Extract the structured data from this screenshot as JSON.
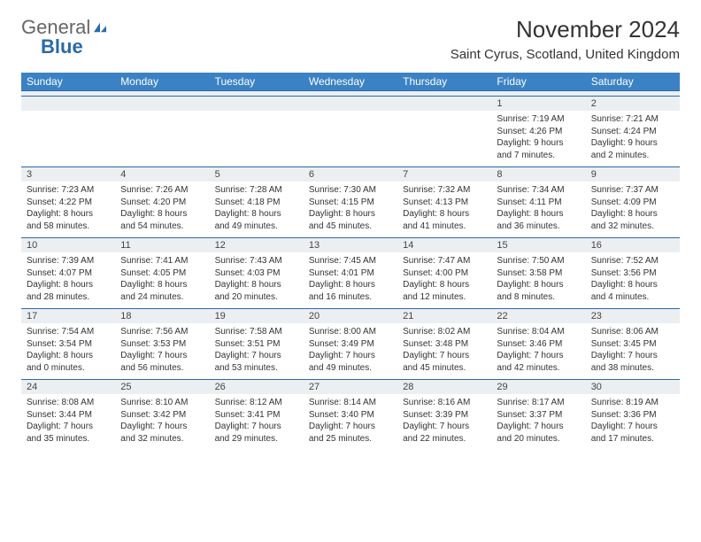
{
  "branding": {
    "logo_part1": "General",
    "logo_part2": "Blue",
    "logo_color_primary": "#666666",
    "logo_color_accent": "#2a6aa8"
  },
  "header": {
    "month_title": "November 2024",
    "location": "Saint Cyrus, Scotland, United Kingdom"
  },
  "colors": {
    "header_bg": "#3b82c4",
    "header_text": "#ffffff",
    "day_label_bg": "#eceff1",
    "border": "#2a6aa8",
    "body_text": "#333333"
  },
  "weekdays": [
    "Sunday",
    "Monday",
    "Tuesday",
    "Wednesday",
    "Thursday",
    "Friday",
    "Saturday"
  ],
  "weeks": [
    [
      {
        "empty": true
      },
      {
        "empty": true
      },
      {
        "empty": true
      },
      {
        "empty": true
      },
      {
        "empty": true
      },
      {
        "day": "1",
        "sunrise": "Sunrise: 7:19 AM",
        "sunset": "Sunset: 4:26 PM",
        "daylight": "Daylight: 9 hours and 7 minutes."
      },
      {
        "day": "2",
        "sunrise": "Sunrise: 7:21 AM",
        "sunset": "Sunset: 4:24 PM",
        "daylight": "Daylight: 9 hours and 2 minutes."
      }
    ],
    [
      {
        "day": "3",
        "sunrise": "Sunrise: 7:23 AM",
        "sunset": "Sunset: 4:22 PM",
        "daylight": "Daylight: 8 hours and 58 minutes."
      },
      {
        "day": "4",
        "sunrise": "Sunrise: 7:26 AM",
        "sunset": "Sunset: 4:20 PM",
        "daylight": "Daylight: 8 hours and 54 minutes."
      },
      {
        "day": "5",
        "sunrise": "Sunrise: 7:28 AM",
        "sunset": "Sunset: 4:18 PM",
        "daylight": "Daylight: 8 hours and 49 minutes."
      },
      {
        "day": "6",
        "sunrise": "Sunrise: 7:30 AM",
        "sunset": "Sunset: 4:15 PM",
        "daylight": "Daylight: 8 hours and 45 minutes."
      },
      {
        "day": "7",
        "sunrise": "Sunrise: 7:32 AM",
        "sunset": "Sunset: 4:13 PM",
        "daylight": "Daylight: 8 hours and 41 minutes."
      },
      {
        "day": "8",
        "sunrise": "Sunrise: 7:34 AM",
        "sunset": "Sunset: 4:11 PM",
        "daylight": "Daylight: 8 hours and 36 minutes."
      },
      {
        "day": "9",
        "sunrise": "Sunrise: 7:37 AM",
        "sunset": "Sunset: 4:09 PM",
        "daylight": "Daylight: 8 hours and 32 minutes."
      }
    ],
    [
      {
        "day": "10",
        "sunrise": "Sunrise: 7:39 AM",
        "sunset": "Sunset: 4:07 PM",
        "daylight": "Daylight: 8 hours and 28 minutes."
      },
      {
        "day": "11",
        "sunrise": "Sunrise: 7:41 AM",
        "sunset": "Sunset: 4:05 PM",
        "daylight": "Daylight: 8 hours and 24 minutes."
      },
      {
        "day": "12",
        "sunrise": "Sunrise: 7:43 AM",
        "sunset": "Sunset: 4:03 PM",
        "daylight": "Daylight: 8 hours and 20 minutes."
      },
      {
        "day": "13",
        "sunrise": "Sunrise: 7:45 AM",
        "sunset": "Sunset: 4:01 PM",
        "daylight": "Daylight: 8 hours and 16 minutes."
      },
      {
        "day": "14",
        "sunrise": "Sunrise: 7:47 AM",
        "sunset": "Sunset: 4:00 PM",
        "daylight": "Daylight: 8 hours and 12 minutes."
      },
      {
        "day": "15",
        "sunrise": "Sunrise: 7:50 AM",
        "sunset": "Sunset: 3:58 PM",
        "daylight": "Daylight: 8 hours and 8 minutes."
      },
      {
        "day": "16",
        "sunrise": "Sunrise: 7:52 AM",
        "sunset": "Sunset: 3:56 PM",
        "daylight": "Daylight: 8 hours and 4 minutes."
      }
    ],
    [
      {
        "day": "17",
        "sunrise": "Sunrise: 7:54 AM",
        "sunset": "Sunset: 3:54 PM",
        "daylight": "Daylight: 8 hours and 0 minutes."
      },
      {
        "day": "18",
        "sunrise": "Sunrise: 7:56 AM",
        "sunset": "Sunset: 3:53 PM",
        "daylight": "Daylight: 7 hours and 56 minutes."
      },
      {
        "day": "19",
        "sunrise": "Sunrise: 7:58 AM",
        "sunset": "Sunset: 3:51 PM",
        "daylight": "Daylight: 7 hours and 53 minutes."
      },
      {
        "day": "20",
        "sunrise": "Sunrise: 8:00 AM",
        "sunset": "Sunset: 3:49 PM",
        "daylight": "Daylight: 7 hours and 49 minutes."
      },
      {
        "day": "21",
        "sunrise": "Sunrise: 8:02 AM",
        "sunset": "Sunset: 3:48 PM",
        "daylight": "Daylight: 7 hours and 45 minutes."
      },
      {
        "day": "22",
        "sunrise": "Sunrise: 8:04 AM",
        "sunset": "Sunset: 3:46 PM",
        "daylight": "Daylight: 7 hours and 42 minutes."
      },
      {
        "day": "23",
        "sunrise": "Sunrise: 8:06 AM",
        "sunset": "Sunset: 3:45 PM",
        "daylight": "Daylight: 7 hours and 38 minutes."
      }
    ],
    [
      {
        "day": "24",
        "sunrise": "Sunrise: 8:08 AM",
        "sunset": "Sunset: 3:44 PM",
        "daylight": "Daylight: 7 hours and 35 minutes."
      },
      {
        "day": "25",
        "sunrise": "Sunrise: 8:10 AM",
        "sunset": "Sunset: 3:42 PM",
        "daylight": "Daylight: 7 hours and 32 minutes."
      },
      {
        "day": "26",
        "sunrise": "Sunrise: 8:12 AM",
        "sunset": "Sunset: 3:41 PM",
        "daylight": "Daylight: 7 hours and 29 minutes."
      },
      {
        "day": "27",
        "sunrise": "Sunrise: 8:14 AM",
        "sunset": "Sunset: 3:40 PM",
        "daylight": "Daylight: 7 hours and 25 minutes."
      },
      {
        "day": "28",
        "sunrise": "Sunrise: 8:16 AM",
        "sunset": "Sunset: 3:39 PM",
        "daylight": "Daylight: 7 hours and 22 minutes."
      },
      {
        "day": "29",
        "sunrise": "Sunrise: 8:17 AM",
        "sunset": "Sunset: 3:37 PM",
        "daylight": "Daylight: 7 hours and 20 minutes."
      },
      {
        "day": "30",
        "sunrise": "Sunrise: 8:19 AM",
        "sunset": "Sunset: 3:36 PM",
        "daylight": "Daylight: 7 hours and 17 minutes."
      }
    ]
  ]
}
